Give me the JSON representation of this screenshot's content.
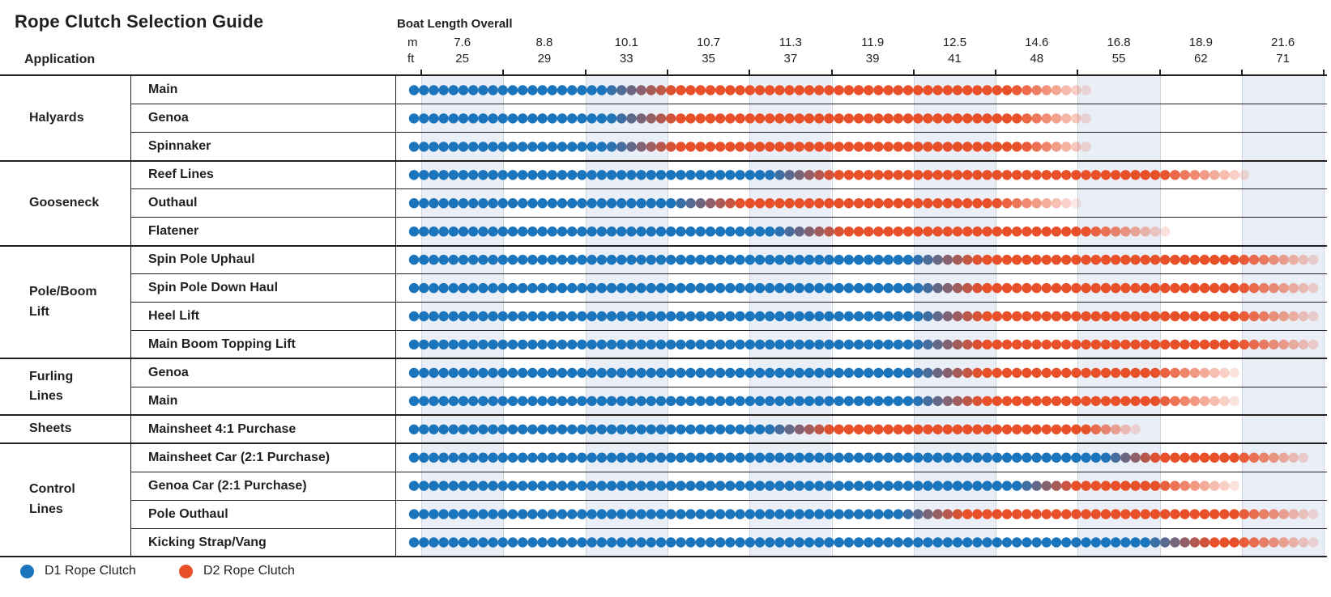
{
  "title": "Rope Clutch Selection Guide",
  "application_label": "Application",
  "axis": {
    "title": "Boat Length Overall",
    "unit_m": "m",
    "unit_ft": "ft",
    "ticks_m": [
      "7.6",
      "8.8",
      "10.1",
      "10.7",
      "11.3",
      "11.9",
      "12.5",
      "14.6",
      "16.8",
      "18.9",
      "21.6"
    ],
    "ticks_ft": [
      "25",
      "29",
      "33",
      "35",
      "37",
      "39",
      "41",
      "48",
      "55",
      "62",
      "71"
    ]
  },
  "legend": [
    {
      "label": "D1 Rope Clutch",
      "color": "#1b75bc"
    },
    {
      "label": "D2 Rope Clutch",
      "color": "#e8502a"
    }
  ],
  "colors": {
    "d1_blue": "#1b75bc",
    "d2_orange": "#e8502a",
    "band": "#e9eef7",
    "grid": "#ccd4de",
    "rule": "#231f20",
    "text": "#231f20"
  },
  "chart_data": {
    "type": "scatter",
    "variant": "dot-range-matrix",
    "title": "Rope Clutch Selection Guide",
    "x_axis": {
      "title": "Boat Length Overall",
      "ticks_m": [
        7.6,
        8.8,
        10.1,
        10.7,
        11.3,
        11.9,
        12.5,
        14.6,
        16.8,
        18.9,
        21.6
      ],
      "ticks_ft": [
        25,
        29,
        33,
        35,
        37,
        39,
        41,
        48,
        55,
        62,
        71
      ],
      "scale": "categorical-columns, shaded every other column"
    },
    "series_legend": [
      "D1 Rope Clutch",
      "D2 Rope Clutch"
    ],
    "note": "Each application row shows a run of dots: D1 (blue) from 25 ft up to a crossover, a blended transition, then D2 (orange) which fades out toward its upper limit. ft values are read off the axis; fade_out values are approximate.",
    "rows": [
      {
        "group": "Halyards",
        "application": "Main",
        "d1_ft": [
          25,
          33
        ],
        "d2_ft": [
          33,
          46
        ],
        "d2_fade_out_ft": 52,
        "px": {
          "blueEnd": 743,
          "orangeStart": 833,
          "solidEnd": 1250,
          "fadeEnd": 1345
        }
      },
      {
        "group": "Halyards",
        "application": "Genoa",
        "d1_ft": [
          25,
          33
        ],
        "d2_ft": [
          33,
          46
        ],
        "d2_fade_out_ft": 52,
        "px": {
          "blueEnd": 752,
          "orangeStart": 838,
          "solidEnd": 1255,
          "fadeEnd": 1347
        }
      },
      {
        "group": "Halyards",
        "application": "Spinnaker",
        "d1_ft": [
          25,
          33
        ],
        "d2_ft": [
          33,
          46
        ],
        "d2_fade_out_ft": 52,
        "px": {
          "blueEnd": 748,
          "orangeStart": 836,
          "solidEnd": 1260,
          "fadeEnd": 1348
        }
      },
      {
        "group": "Gooseneck",
        "application": "Reef Lines",
        "d1_ft": [
          25,
          37
        ],
        "d2_ft": [
          37,
          59
        ],
        "d2_fade_out_ft": 67,
        "px": {
          "blueEnd": 947,
          "orangeStart": 1032,
          "solidEnd": 1433,
          "fadeEnd": 1542
        }
      },
      {
        "group": "Gooseneck",
        "application": "Outhaul",
        "d1_ft": [
          25,
          35
        ],
        "d2_ft": [
          35,
          45
        ],
        "d2_fade_out_ft": 51,
        "px": {
          "blueEnd": 827,
          "orangeStart": 915,
          "solidEnd": 1230,
          "fadeEnd": 1330
        }
      },
      {
        "group": "Gooseneck",
        "application": "Flatener",
        "d1_ft": [
          25,
          37
        ],
        "d2_ft": [
          37,
          52
        ],
        "d2_fade_out_ft": 59,
        "px": {
          "blueEnd": 955,
          "orangeStart": 1042,
          "solidEnd": 1340,
          "fadeEnd": 1443
        }
      },
      {
        "group": "Pole/Boom Lift",
        "application": "Spin Pole Uphaul",
        "d1_ft": [
          25,
          41
        ],
        "d2_ft": [
          41,
          66
        ],
        "d2_fade_out_ft": 75,
        "px": {
          "blueEnd": 1125,
          "orangeStart": 1210,
          "solidEnd": 1528,
          "fadeEnd": 1630
        }
      },
      {
        "group": "Pole/Boom Lift",
        "application": "Spin Pole Down Haul",
        "d1_ft": [
          25,
          41
        ],
        "d2_ft": [
          41,
          66
        ],
        "d2_fade_out_ft": 75,
        "px": {
          "blueEnd": 1128,
          "orangeStart": 1212,
          "solidEnd": 1528,
          "fadeEnd": 1633
        }
      },
      {
        "group": "Pole/Boom Lift",
        "application": "Heel Lift",
        "d1_ft": [
          25,
          41
        ],
        "d2_ft": [
          41,
          66
        ],
        "d2_fade_out_ft": 75,
        "px": {
          "blueEnd": 1130,
          "orangeStart": 1214,
          "solidEnd": 1528,
          "fadeEnd": 1630
        }
      },
      {
        "group": "Pole/Boom Lift",
        "application": "Main Boom Topping Lift",
        "d1_ft": [
          25,
          41
        ],
        "d2_ft": [
          41,
          66
        ],
        "d2_fade_out_ft": 75,
        "px": {
          "blueEnd": 1128,
          "orangeStart": 1212,
          "solidEnd": 1528,
          "fadeEnd": 1633
        }
      },
      {
        "group": "Furling Lines",
        "application": "Genoa",
        "d1_ft": [
          25,
          41
        ],
        "d2_ft": [
          41,
          58
        ],
        "d2_fade_out_ft": 66,
        "px": {
          "blueEnd": 1125,
          "orangeStart": 1210,
          "solidEnd": 1427,
          "fadeEnd": 1527
        }
      },
      {
        "group": "Furling Lines",
        "application": "Main",
        "d1_ft": [
          25,
          41
        ],
        "d2_ft": [
          41,
          58
        ],
        "d2_fade_out_ft": 66,
        "px": {
          "blueEnd": 1128,
          "orangeStart": 1212,
          "solidEnd": 1427,
          "fadeEnd": 1527
        }
      },
      {
        "group": "Sheets",
        "application": "Mainsheet 4:1 Purchase",
        "d1_ft": [
          25,
          37
        ],
        "d2_ft": [
          37,
          52
        ],
        "d2_fade_out_ft": 57,
        "px": {
          "blueEnd": 945,
          "orangeStart": 1027,
          "solidEnd": 1340,
          "fadeEnd": 1405
        }
      },
      {
        "group": "Control Lines",
        "application": "Mainsheet Car (2:1 Purchase)",
        "d1_ft": [
          25,
          56
        ],
        "d2_ft": [
          56,
          66
        ],
        "d2_fade_out_ft": 74,
        "px": {
          "blueEnd": 1363,
          "orangeStart": 1430,
          "solidEnd": 1527,
          "fadeEnd": 1618
        }
      },
      {
        "group": "Control Lines",
        "application": "Genoa Car (2:1 Purchase)",
        "d1_ft": [
          25,
          49
        ],
        "d2_ft": [
          49,
          58
        ],
        "d2_fade_out_ft": 66,
        "px": {
          "blueEnd": 1254,
          "orangeStart": 1327,
          "solidEnd": 1427,
          "fadeEnd": 1527
        }
      },
      {
        "group": "Control Lines",
        "application": "Pole Outhaul",
        "d1_ft": [
          25,
          40
        ],
        "d2_ft": [
          40,
          66
        ],
        "d2_fade_out_ft": 75,
        "px": {
          "blueEnd": 1108,
          "orangeStart": 1190,
          "solidEnd": 1527,
          "fadeEnd": 1627
        }
      },
      {
        "group": "Control Lines",
        "application": "Kicking Strap/Vang",
        "d1_ft": [
          25,
          60
        ],
        "d2_ft": [
          60,
          66
        ],
        "d2_fade_out_ft": 75,
        "px": {
          "blueEnd": 1413,
          "orangeStart": 1497,
          "solidEnd": 1527,
          "fadeEnd": 1627
        }
      }
    ]
  }
}
